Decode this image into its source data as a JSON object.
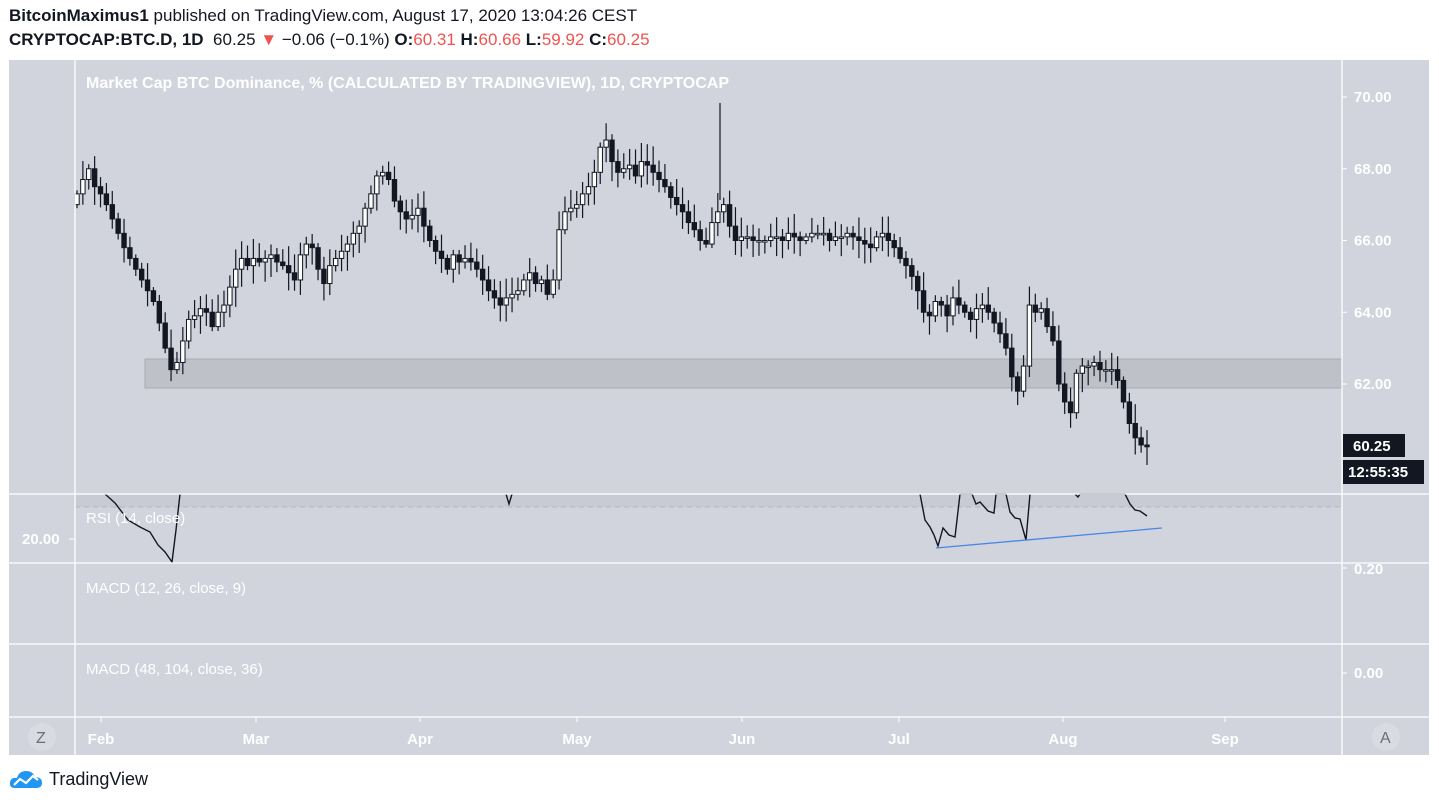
{
  "header": {
    "author": "BitcoinMaximus1",
    "published_text": " published on TradingView.com, August 17, 2020 13:04:26 CEST",
    "symbol": "CRYPTOCAP:BTC.D, 1D",
    "last": "60.25",
    "change_arrow": "▼",
    "change": "−0.06 (−0.1%)",
    "o_label": "O:",
    "o": "60.31",
    "h_label": "H:",
    "h": "60.66",
    "l_label": "L:",
    "l": "59.92",
    "c_label": "C:",
    "c": "60.25"
  },
  "chart": {
    "title": "Market Cap BTC Dominance, % (CALCULATED BY TRADINGVIEW), 1D, CRYPTOCAP",
    "price_label": "60.25",
    "countdown": "12:55:35",
    "rsi_label": "RSI (14, close)",
    "rsi_axis_label": "20.00",
    "macd1_label": "MACD (12, 26, close, 9)",
    "macd1_axis_label": "0.20",
    "macd2_label": "MACD (48, 104, close, 36)",
    "macd2_axis_label": "0.00",
    "z_button": "Z",
    "a_button": "A"
  },
  "footer": {
    "brand": "TradingView"
  },
  "colors": {
    "background": "#d1d4dc",
    "candle_up": "#ffffff",
    "candle_down": "#131722",
    "support_zone": "#bfc1c8",
    "trendline": "#4a86e8",
    "down_red": "#ef5350",
    "axis_text": "#ffffff"
  },
  "chart_data": {
    "type": "candlestick",
    "title": "Market Cap BTC Dominance, % (CALCULATED BY TRADINGVIEW), 1D, CRYPTOCAP",
    "x_ticks": [
      "Feb",
      "Mar",
      "Apr",
      "May",
      "Jun",
      "Jul",
      "Aug",
      "Sep"
    ],
    "y_ticks": [
      "70.00",
      "68.00",
      "66.00",
      "64.00",
      "62.00"
    ],
    "ylim": [
      59.5,
      71
    ],
    "last_price": 60.25,
    "support_zone": [
      61.9,
      62.7
    ],
    "closes": [
      67.3,
      67.7,
      68.0,
      67.5,
      67.3,
      67.0,
      66.6,
      66.2,
      65.8,
      65.5,
      65.2,
      64.9,
      64.6,
      64.3,
      63.7,
      63.0,
      62.4,
      62.6,
      63.2,
      63.8,
      63.9,
      64.1,
      64.0,
      63.6,
      64.0,
      64.2,
      64.7,
      65.2,
      65.5,
      65.3,
      65.5,
      65.4,
      65.5,
      65.6,
      65.4,
      65.3,
      65.1,
      64.9,
      65.6,
      65.9,
      65.8,
      65.2,
      64.8,
      65.3,
      65.5,
      65.7,
      65.9,
      66.2,
      66.4,
      66.9,
      67.3,
      67.8,
      67.9,
      67.7,
      67.1,
      66.8,
      66.6,
      66.7,
      66.9,
      66.4,
      66.0,
      65.7,
      65.5,
      65.2,
      65.6,
      65.4,
      65.5,
      65.4,
      65.2,
      64.9,
      64.6,
      64.4,
      64.2,
      64.4,
      64.5,
      64.6,
      64.9,
      65.1,
      64.8,
      64.9,
      64.5,
      64.9,
      66.3,
      66.8,
      66.9,
      67.0,
      67.3,
      67.5,
      67.9,
      68.6,
      68.8,
      68.2,
      67.9,
      68.0,
      68.1,
      67.8,
      68.2,
      68.1,
      67.9,
      67.7,
      67.5,
      67.2,
      67.0,
      66.8,
      66.5,
      66.3,
      66.0,
      65.9,
      66.5,
      66.8,
      67.0,
      66.4,
      66.0,
      66.1,
      66.1,
      66.0,
      66.0,
      66.0,
      66.1,
      66.1,
      66.0,
      66.2,
      66.1,
      66.0,
      66.1,
      66.2,
      66.2,
      66.2,
      66.0,
      66.1,
      66.1,
      66.2,
      66.1,
      66.0,
      65.9,
      65.8,
      66.1,
      66.2,
      66.0,
      65.8,
      65.5,
      65.3,
      65.0,
      64.6,
      64.0,
      63.9,
      64.3,
      64.2,
      63.9,
      64.4,
      64.2,
      64.0,
      63.8,
      64.1,
      64.2,
      64.0,
      63.7,
      63.4,
      63.0,
      62.2,
      61.8,
      62.5,
      64.2,
      64.0,
      64.1,
      63.6,
      63.2,
      62.0,
      61.5,
      61.2,
      62.3,
      62.5,
      62.5,
      62.6,
      62.4,
      62.4,
      62.4,
      62.1,
      61.5,
      60.9,
      60.5,
      60.3,
      60.25
    ],
    "rsi": {
      "label": "RSI (14, close)",
      "visible_level": 20,
      "trendline_low_points": [
        [
          938,
          548
        ],
        [
          1026,
          541
        ]
      ]
    },
    "macd_fast": {
      "label": "MACD (12, 26, close, 9)",
      "axis_tick": 0.2
    },
    "macd_slow": {
      "label": "MACD (48, 104, close, 36)",
      "axis_tick": 0.0
    }
  }
}
